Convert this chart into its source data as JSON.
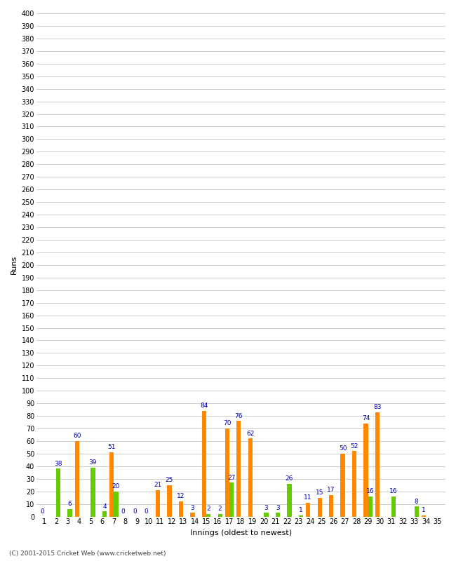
{
  "xlabel": "Innings (oldest to newest)",
  "ylabel": "Runs",
  "innings": [
    1,
    2,
    3,
    4,
    5,
    6,
    7,
    8,
    9,
    10,
    11,
    12,
    13,
    14,
    15,
    16,
    17,
    18,
    19,
    20,
    21,
    22,
    23,
    24,
    25,
    26,
    27,
    28,
    29,
    30,
    31,
    32,
    33,
    34,
    35
  ],
  "orange_vals": [
    0,
    0,
    0,
    60,
    0,
    0,
    51,
    0,
    0,
    0,
    21,
    25,
    12,
    3,
    84,
    0,
    70,
    76,
    62,
    0,
    0,
    0,
    0,
    11,
    15,
    17,
    50,
    52,
    74,
    83,
    0,
    0,
    0,
    1,
    0
  ],
  "green_vals": [
    0,
    38,
    6,
    0,
    39,
    4,
    20,
    0,
    0,
    0,
    0,
    0,
    0,
    0,
    2,
    2,
    27,
    0,
    0,
    3,
    3,
    26,
    1,
    0,
    0,
    0,
    0,
    0,
    16,
    0,
    16,
    0,
    8,
    0,
    0
  ],
  "orange_zero_label_indices": [
    0,
    7,
    8,
    9
  ],
  "green_zero_label_indices": [],
  "orange_color": "#ff8800",
  "green_color": "#66cc00",
  "label_color": "#0000bb",
  "background_color": "#ffffff",
  "grid_color": "#cccccc",
  "ylim": [
    0,
    400
  ],
  "ytick_step": 10,
  "footer": "(C) 2001-2015 Cricket Web (www.cricketweb.net)",
  "label_fontsize": 6.5,
  "axis_label_fontsize": 8,
  "tick_fontsize": 7,
  "bar_width": 0.38,
  "figwidth": 6.5,
  "figheight": 8.0,
  "fig_dpi": 100
}
